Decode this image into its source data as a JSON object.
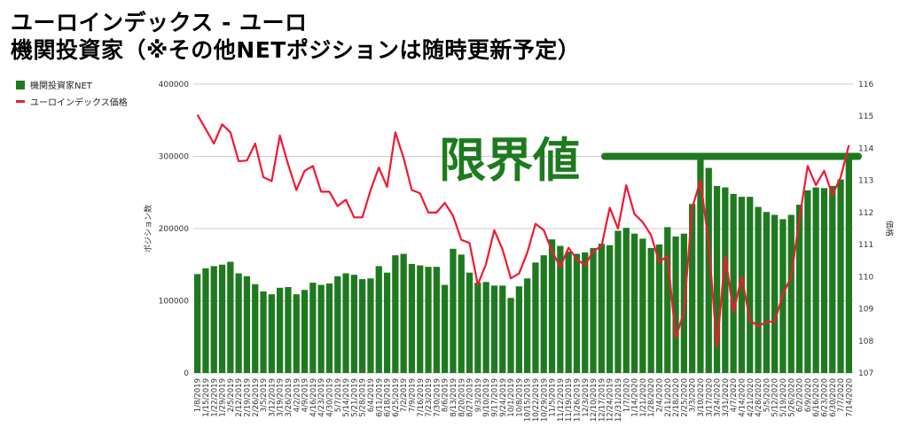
{
  "title_line1": "ユーロインデックス - ユーロ",
  "title_line2": "機関投資家（※その他NETポジションは随時更新予定）",
  "annotation": "限界値",
  "colors": {
    "bar": "#1f7a1f",
    "line": "#f21834",
    "annotation": "#1e7a1e",
    "grid": "#cccccc"
  },
  "legend": [
    {
      "label": "機関投資家NET",
      "kind": "bar"
    },
    {
      "label": "ユーロインデックス価格",
      "kind": "line"
    }
  ],
  "chart_data": {
    "type": "bar",
    "ylabel": "ポジション数",
    "y2label": "価格",
    "ylim": [
      0,
      400000
    ],
    "y2lim": [
      107,
      116
    ],
    "yticks": [
      "0",
      "100000",
      "200000",
      "300000",
      "400000"
    ],
    "y2ticks": [
      "107",
      "108",
      "109",
      "110",
      "111",
      "112",
      "113",
      "114",
      "115",
      "116"
    ],
    "grid": true,
    "legend_position": "top-left",
    "threshold": 300000,
    "categories": [
      "1/8/2019",
      "1/15/2019",
      "1/22/2019",
      "1/29/2019",
      "2/5/2019",
      "2/12/2019",
      "2/19/2019",
      "2/26/2019",
      "3/5/2019",
      "3/12/2019",
      "3/19/2019",
      "3/26/2019",
      "4/2/2019",
      "4/9/2019",
      "4/16/2019",
      "4/23/2019",
      "4/30/2019",
      "5/7/2019",
      "5/14/2019",
      "5/21/2019",
      "5/28/2019",
      "6/4/2019",
      "6/11/2019",
      "6/18/2019",
      "6/25/2019",
      "7/2/2019",
      "7/9/2019",
      "7/16/2019",
      "7/23/2019",
      "7/30/2019",
      "8/6/2019",
      "8/13/2019",
      "8/20/2019",
      "8/27/2019",
      "9/3/2019",
      "9/10/2019",
      "9/17/2019",
      "9/24/2019",
      "10/1/2019",
      "10/8/2019",
      "10/15/2019",
      "10/22/2019",
      "10/29/2019",
      "11/5/2019",
      "11/12/2019",
      "11/19/2019",
      "11/26/2019",
      "12/3/2019",
      "12/10/2019",
      "12/17/2019",
      "12/24/2019",
      "12/31/2019",
      "1/7/2020",
      "1/14/2020",
      "1/21/2020",
      "1/28/2020",
      "2/4/2020",
      "2/11/2020",
      "2/18/2020",
      "2/25/2020",
      "3/3/2020",
      "3/10/2020",
      "3/17/2020",
      "3/24/2020",
      "3/31/2020",
      "4/7/2020",
      "4/14/2020",
      "4/21/2020",
      "4/28/2020",
      "5/5/2020",
      "5/12/2020",
      "5/19/2020",
      "5/26/2020",
      "6/2/2020",
      "6/9/2020",
      "6/16/2020",
      "6/23/2020",
      "6/30/2020",
      "7/7/2020",
      "7/14/2020"
    ],
    "xtick_labels": [
      "1/8/2019",
      "1/15/2019",
      "1/22/2019",
      "1/29/2019",
      "2/5/2019",
      "2/12/2019",
      "2/19/2019",
      "2/26/2019",
      "3/5/2019",
      "3/12/2019",
      "3/19/2019",
      "3/26/2019",
      "4/2/2019",
      "4/9/2019",
      "4/16/2019",
      "4/23/2019",
      "4/30/2019",
      "5/7/2019",
      "5/14/2019",
      "5/21/2019",
      "5/28/2019",
      "6/4/2019",
      "6/11/2019",
      "6/18/2019",
      "6/25/2019",
      "7/2/2019",
      "7/9/2019",
      "7/16/2019",
      "7/23/2019",
      "7/30/2019",
      "8/6/2019",
      "8/13/2019",
      "8/20/2019",
      "8/27/2019",
      "9/3/2019",
      "9/10/2019",
      "9/17/2019",
      "9/24/2019",
      "10/1/2019",
      "10/8/2019",
      "10/15/2019",
      "10/22/2019",
      "10/29/2019",
      "11/5/2019",
      "11/12/2019",
      "11/19/2019",
      "11/26/2019",
      "12/3/2019",
      "12/10/2019",
      "12/17/2019",
      "12/24/2019",
      "12/31/2019",
      "1/7/2020",
      "1/14/2020",
      "1/21/2020",
      "1/28/2020",
      "2/4/2020",
      "2/11/2020",
      "2/18/2020",
      "2/25/2020",
      "3/3/2020",
      "3/10/2020",
      "3/17/2020",
      "3/24/2020",
      "3/31/2020",
      "4/7/2020",
      "4/14/2020",
      "4/21/2020",
      "4/28/2020",
      "5/5/2020",
      "5/12/2020",
      "5/19/2020",
      "5/26/2020",
      "6/2/2020",
      "6/9/2020",
      "6/16/2020",
      "6/23/2020",
      "6/30/2020",
      "7/7/2020",
      "7/14/2020"
    ],
    "series": [
      {
        "name": "機関投資家NET",
        "type": "bar",
        "values": [
          137000,
          145000,
          148000,
          150000,
          154000,
          138000,
          134000,
          123000,
          113000,
          109000,
          118000,
          119000,
          109000,
          115000,
          125000,
          122000,
          124000,
          134000,
          138000,
          136000,
          130000,
          131000,
          148000,
          139000,
          163000,
          165000,
          151000,
          149000,
          147000,
          147000,
          122000,
          172000,
          164000,
          139000,
          125000,
          126000,
          121000,
          121000,
          104000,
          120000,
          131000,
          153000,
          163000,
          185000,
          176000,
          168000,
          165000,
          167000,
          173000,
          179000,
          177000,
          197000,
          201000,
          193000,
          186000,
          173000,
          178000,
          202000,
          189000,
          193000,
          234000,
          300000,
          284000,
          259000,
          257000,
          248000,
          244000,
          244000,
          230000,
          223000,
          219000,
          213000,
          219000,
          233000,
          253000,
          257000,
          256000,
          259000,
          268000,
          300000
        ]
      },
      {
        "name": "ユーロインデックス価格",
        "type": "line",
        "values": [
          115.05,
          114.6,
          114.15,
          114.75,
          114.5,
          113.6,
          113.62,
          114.15,
          113.1,
          112.98,
          114.4,
          113.5,
          112.7,
          113.3,
          113.45,
          112.65,
          112.65,
          112.2,
          112.4,
          111.85,
          111.85,
          112.7,
          113.4,
          112.8,
          114.5,
          113.7,
          112.7,
          112.6,
          112.0,
          112.0,
          112.3,
          111.9,
          111.15,
          111.05,
          109.75,
          110.4,
          111.45,
          110.85,
          109.95,
          110.1,
          110.75,
          111.65,
          111.45,
          110.8,
          110.3,
          110.9,
          110.55,
          110.35,
          110.8,
          110.95,
          112.15,
          111.5,
          112.85,
          111.95,
          111.7,
          111.3,
          110.45,
          110.65,
          108.1,
          108.9,
          112.15,
          113.0,
          111.05,
          107.8,
          110.65,
          108.9,
          110.0,
          108.65,
          108.45,
          108.6,
          108.6,
          109.45,
          110.0,
          111.8,
          113.45,
          112.85,
          113.3,
          112.55,
          113.1,
          114.1
        ]
      }
    ]
  }
}
